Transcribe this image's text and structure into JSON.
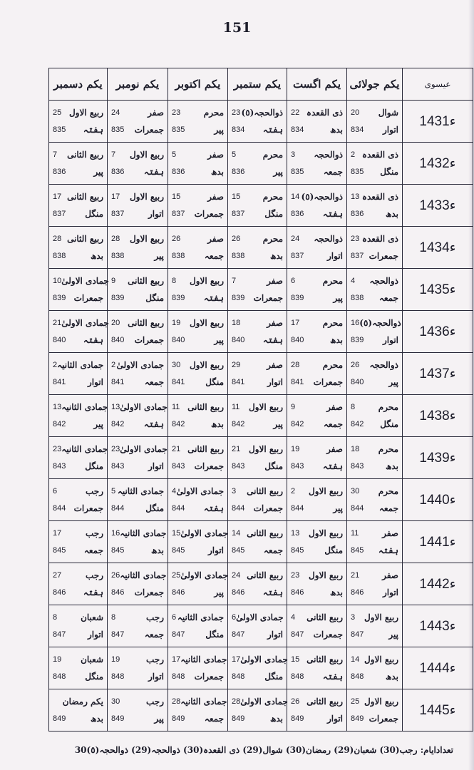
{
  "page_number": "151",
  "headers": [
    "عیسوی",
    "یکم جولائی",
    "یکم اگست",
    "یکم ستمبر",
    "یکم اکتوبر",
    "یکم نومبر",
    "یکم دسمبر"
  ],
  "rows": [
    {
      "year": "1431ء",
      "cells": [
        [
          "20",
          "شوال",
          "834",
          "اتوار"
        ],
        [
          "22",
          "ذی القعدہ",
          "834",
          "بدھ"
        ],
        [
          "23",
          "ذوالحجہ(٥)",
          "834",
          "ہفتہ"
        ],
        [
          "23",
          "محرم",
          "835",
          "پیر"
        ],
        [
          "24",
          "صفر",
          "835",
          "جمعرات"
        ],
        [
          "25",
          "ربیع الاول",
          "835",
          "ہفتہ"
        ]
      ]
    },
    {
      "year": "1432ء",
      "cells": [
        [
          "2",
          "ذی القعدہ",
          "835",
          "منگل"
        ],
        [
          "3",
          "ذوالحجہ",
          "835",
          "جمعہ"
        ],
        [
          "5",
          "محرم",
          "836",
          "پیر"
        ],
        [
          "5",
          "صفر",
          "836",
          "بدھ"
        ],
        [
          "7",
          "ربیع الاول",
          "836",
          "ہفتہ"
        ],
        [
          "7",
          "ربیع الثانی",
          "836",
          "پیر"
        ]
      ]
    },
    {
      "year": "1433ء",
      "cells": [
        [
          "13",
          "ذی القعدہ",
          "836",
          "بدھ"
        ],
        [
          "14",
          "ذوالحجہ(٥)",
          "836",
          "ہفتہ"
        ],
        [
          "15",
          "محرم",
          "837",
          "منگل"
        ],
        [
          "15",
          "صفر",
          "837",
          "جمعرات"
        ],
        [
          "17",
          "ربیع الاول",
          "837",
          "اتوار"
        ],
        [
          "17",
          "ربیع الثانی",
          "837",
          "منگل"
        ]
      ]
    },
    {
      "year": "1434ء",
      "cells": [
        [
          "23",
          "ذی القعدہ",
          "837",
          "جمعرات"
        ],
        [
          "24",
          "ذوالحجہ",
          "837",
          "اتوار"
        ],
        [
          "26",
          "محرم",
          "838",
          "بدھ"
        ],
        [
          "26",
          "صفر",
          "838",
          "جمعہ"
        ],
        [
          "28",
          "ربیع الاول",
          "838",
          "پیر"
        ],
        [
          "28",
          "ربیع الثانی",
          "838",
          "بدھ"
        ]
      ]
    },
    {
      "year": "1435ء",
      "cells": [
        [
          "4",
          "ذوالحجہ",
          "838",
          "جمعہ"
        ],
        [
          "6",
          "محرم",
          "839",
          "پیر"
        ],
        [
          "7",
          "صفر",
          "839",
          "جمعرات"
        ],
        [
          "8",
          "ربیع الاول",
          "839",
          "ہفتہ"
        ],
        [
          "9",
          "ربیع الثانی",
          "839",
          "منگل"
        ],
        [
          "10",
          "جمادی الاولیٰ",
          "839",
          "جمعرات"
        ]
      ]
    },
    {
      "year": "1436ء",
      "cells": [
        [
          "16",
          "ذوالحجہ(٥)",
          "839",
          "اتوار"
        ],
        [
          "17",
          "محرم",
          "840",
          "بدھ"
        ],
        [
          "18",
          "صفر",
          "840",
          "ہفتہ"
        ],
        [
          "19",
          "ربیع الاول",
          "840",
          "پیر"
        ],
        [
          "20",
          "ربیع الثانی",
          "840",
          "جمعرات"
        ],
        [
          "21",
          "جمادی الاولیٰ",
          "840",
          "ہفتہ"
        ]
      ]
    },
    {
      "year": "1437ء",
      "cells": [
        [
          "26",
          "ذوالحجہ",
          "840",
          "پیر"
        ],
        [
          "28",
          "محرم",
          "841",
          "جمعرات"
        ],
        [
          "29",
          "صفر",
          "841",
          "اتوار"
        ],
        [
          "30",
          "ربیع الاول",
          "841",
          "منگل"
        ],
        [
          "2",
          "جمادی الاولیٰ",
          "841",
          "جمعہ"
        ],
        [
          "2",
          "جمادی الثانیہ",
          "841",
          "اتوار"
        ]
      ]
    },
    {
      "year": "1438ء",
      "cells": [
        [
          "8",
          "محرم",
          "842",
          "منگل"
        ],
        [
          "9",
          "صفر",
          "842",
          "جمعہ"
        ],
        [
          "11",
          "ربیع الاول",
          "842",
          "پیر"
        ],
        [
          "11",
          "ربیع الثانی",
          "842",
          "بدھ"
        ],
        [
          "13",
          "جمادی الاولیٰ",
          "842",
          "ہفتہ"
        ],
        [
          "13",
          "جمادی الثانیہ",
          "842",
          "پیر"
        ]
      ]
    },
    {
      "year": "1439ء",
      "cells": [
        [
          "18",
          "محرم",
          "843",
          "بدھ"
        ],
        [
          "19",
          "صفر",
          "843",
          "ہفتہ"
        ],
        [
          "21",
          "ربیع الاول",
          "843",
          "منگل"
        ],
        [
          "21",
          "ربیع الثانی",
          "843",
          "جمعرات"
        ],
        [
          "23",
          "جمادی الاولیٰ",
          "843",
          "اتوار"
        ],
        [
          "23",
          "جمادی الثانیہ",
          "843",
          "منگل"
        ]
      ]
    },
    {
      "year": "1440ء",
      "cells": [
        [
          "30",
          "محرم",
          "844",
          "جمعہ"
        ],
        [
          "2",
          "ربیع الاول",
          "844",
          "پیر"
        ],
        [
          "3",
          "ربیع الثانی",
          "844",
          "جمعرات"
        ],
        [
          "4",
          "جمادی الاولیٰ",
          "844",
          "ہفتہ"
        ],
        [
          "5",
          "جمادی الثانیہ",
          "844",
          "منگل"
        ],
        [
          "6",
          "رجب",
          "844",
          "جمعرات"
        ]
      ]
    },
    {
      "year": "1441ء",
      "cells": [
        [
          "11",
          "صفر",
          "845",
          "ہفتہ"
        ],
        [
          "13",
          "ربیع الاول",
          "845",
          "منگل"
        ],
        [
          "14",
          "ربیع الثانی",
          "845",
          "جمعہ"
        ],
        [
          "15",
          "جمادی الاولیٰ",
          "845",
          "اتوار"
        ],
        [
          "16",
          "جمادی الثانیہ",
          "845",
          "بدھ"
        ],
        [
          "17",
          "رجب",
          "845",
          "جمعہ"
        ]
      ]
    },
    {
      "year": "1442ء",
      "cells": [
        [
          "21",
          "صفر",
          "846",
          "اتوار"
        ],
        [
          "23",
          "ربیع الاول",
          "846",
          "بدھ"
        ],
        [
          "24",
          "ربیع الثانی",
          "846",
          "ہفتہ"
        ],
        [
          "25",
          "جمادی الاولیٰ",
          "846",
          "پیر"
        ],
        [
          "26",
          "جمادی الثانیہ",
          "846",
          "جمعرات"
        ],
        [
          "27",
          "رجب",
          "846",
          "ہفتہ"
        ]
      ]
    },
    {
      "year": "1443ء",
      "cells": [
        [
          "3",
          "ربیع الاول",
          "847",
          "پیر"
        ],
        [
          "4",
          "ربیع الثانی",
          "847",
          "جمعرات"
        ],
        [
          "6",
          "جمادی الاولیٰ",
          "847",
          "اتوار"
        ],
        [
          "6",
          "جمادی الثانیہ",
          "847",
          "منگل"
        ],
        [
          "8",
          "رجب",
          "847",
          "جمعہ"
        ],
        [
          "8",
          "شعبان",
          "847",
          "اتوار"
        ]
      ]
    },
    {
      "year": "1444ء",
      "cells": [
        [
          "14",
          "ربیع الاول",
          "848",
          "بدھ"
        ],
        [
          "15",
          "ربیع الثانی",
          "848",
          "ہفتہ"
        ],
        [
          "17",
          "جمادی الاولیٰ",
          "848",
          "منگل"
        ],
        [
          "17",
          "جمادی الثانیہ",
          "848",
          "جمعرات"
        ],
        [
          "19",
          "رجب",
          "848",
          "اتوار"
        ],
        [
          "19",
          "شعبان",
          "848",
          "منگل"
        ]
      ]
    },
    {
      "year": "1445ء",
      "cells": [
        [
          "25",
          "ربیع الاول",
          "849",
          "جمعرات"
        ],
        [
          "26",
          "ربیع الثانی",
          "849",
          "اتوار"
        ],
        [
          "28",
          "جمادی الاولیٰ",
          "849",
          "بدھ"
        ],
        [
          "28",
          "جمادی الثانیہ",
          "849",
          "جمعہ"
        ],
        [
          "30",
          "رجب",
          "849",
          "پیر"
        ],
        [
          "",
          "یکم رمضان",
          "849",
          "بدھ"
        ]
      ]
    }
  ],
  "footer": "تعدادایام: رجب(30) شعبان(29) رمضان(30) شوال(29) ذی القعدہ(30) ذوالحجہ(29) ذوالحجہ(٥)30"
}
